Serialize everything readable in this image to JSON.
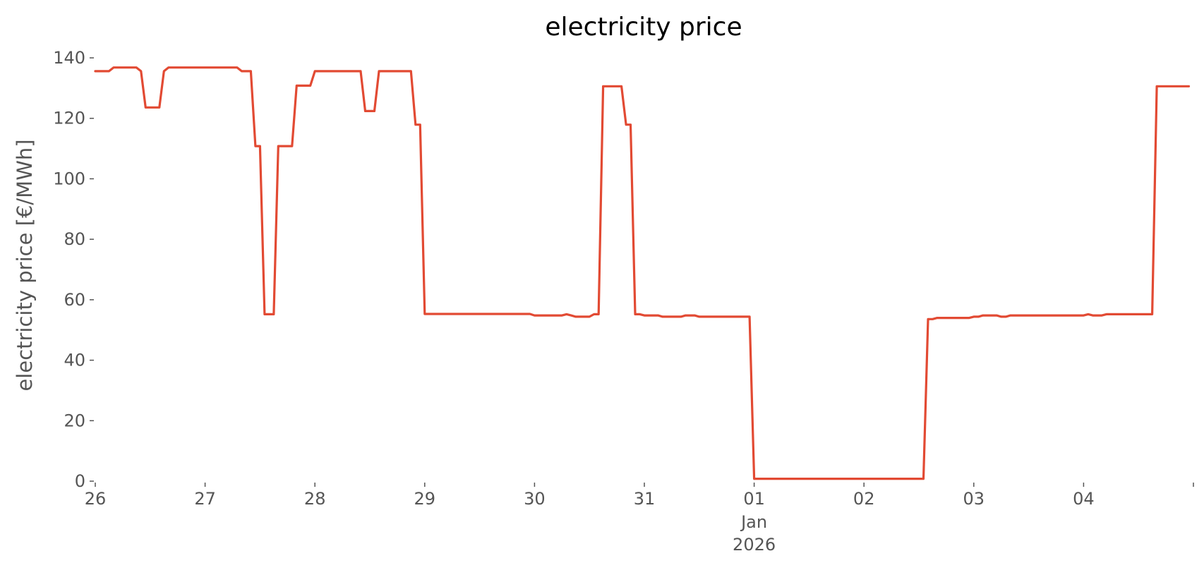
{
  "chart_data": {
    "type": "line",
    "title": "electricity price",
    "xlabel": "",
    "ylabel": "electricity price [€/MWh]",
    "ylim": [
      0,
      145
    ],
    "yticks": [
      0,
      20,
      40,
      60,
      80,
      100,
      120,
      140
    ],
    "xlim": [
      "2025-12-26T00:00",
      "2026-01-04T23:00"
    ],
    "xticks": [
      {
        "x": "2025-12-26",
        "label": "26"
      },
      {
        "x": "2025-12-27",
        "label": "27"
      },
      {
        "x": "2025-12-28",
        "label": "28"
      },
      {
        "x": "2025-12-29",
        "label": "29"
      },
      {
        "x": "2025-12-30",
        "label": "30"
      },
      {
        "x": "2025-12-31",
        "label": "31"
      },
      {
        "x": "2026-01-01",
        "label": "01",
        "sublabels": [
          "Jan",
          "2026"
        ]
      },
      {
        "x": "2026-01-02",
        "label": "02"
      },
      {
        "x": "2026-01-03",
        "label": "03"
      },
      {
        "x": "2026-01-04",
        "label": "04"
      }
    ],
    "grid": false,
    "colors": {
      "series": "#e24a33",
      "text": "#555555"
    },
    "series": [
      {
        "points": [
          [
            "2025-12-26T00:00",
            135.6
          ],
          [
            "2025-12-26T03:00",
            135.6
          ],
          [
            "2025-12-26T04:00",
            136.8
          ],
          [
            "2025-12-26T09:00",
            136.8
          ],
          [
            "2025-12-26T10:00",
            135.6
          ],
          [
            "2025-12-26T11:00",
            123.6
          ],
          [
            "2025-12-26T14:00",
            123.6
          ],
          [
            "2025-12-26T15:00",
            135.6
          ],
          [
            "2025-12-26T16:00",
            136.8
          ],
          [
            "2025-12-27T07:00",
            136.8
          ],
          [
            "2025-12-27T08:00",
            135.6
          ],
          [
            "2025-12-27T10:00",
            135.6
          ],
          [
            "2025-12-27T11:00",
            110.8
          ],
          [
            "2025-12-27T12:00",
            110.8
          ],
          [
            "2025-12-27T13:00",
            55.2
          ],
          [
            "2025-12-27T15:00",
            55.2
          ],
          [
            "2025-12-27T16:00",
            110.8
          ],
          [
            "2025-12-27T19:00",
            110.8
          ],
          [
            "2025-12-27T20:00",
            130.8
          ],
          [
            "2025-12-27T23:00",
            130.8
          ],
          [
            "2025-12-28T00:00",
            135.6
          ],
          [
            "2025-12-28T10:00",
            135.6
          ],
          [
            "2025-12-28T11:00",
            122.4
          ],
          [
            "2025-12-28T13:00",
            122.4
          ],
          [
            "2025-12-28T14:00",
            135.6
          ],
          [
            "2025-12-28T21:00",
            135.6
          ],
          [
            "2025-12-28T22:00",
            117.9
          ],
          [
            "2025-12-28T23:00",
            117.9
          ],
          [
            "2025-12-29T00:00",
            55.3
          ],
          [
            "2025-12-29T23:00",
            55.3
          ],
          [
            "2025-12-30T00:00",
            54.8
          ],
          [
            "2025-12-30T06:00",
            54.8
          ],
          [
            "2025-12-30T07:00",
            55.2
          ],
          [
            "2025-12-30T08:00",
            54.8
          ],
          [
            "2025-12-30T09:00",
            54.4
          ],
          [
            "2025-12-30T12:00",
            54.4
          ],
          [
            "2025-12-30T13:00",
            55.2
          ],
          [
            "2025-12-30T14:00",
            55.2
          ],
          [
            "2025-12-30T15:00",
            130.6
          ],
          [
            "2025-12-30T19:00",
            130.6
          ],
          [
            "2025-12-30T20:00",
            117.9
          ],
          [
            "2025-12-30T21:00",
            117.9
          ],
          [
            "2025-12-30T22:00",
            55.2
          ],
          [
            "2025-12-30T23:00",
            55.2
          ],
          [
            "2025-12-31T00:00",
            54.8
          ],
          [
            "2025-12-31T03:00",
            54.8
          ],
          [
            "2025-12-31T04:00",
            54.4
          ],
          [
            "2025-12-31T08:00",
            54.4
          ],
          [
            "2025-12-31T09:00",
            54.8
          ],
          [
            "2025-12-31T11:00",
            54.8
          ],
          [
            "2025-12-31T12:00",
            54.4
          ],
          [
            "2025-12-31T23:00",
            54.4
          ],
          [
            "2026-01-01T00:00",
            0.8
          ],
          [
            "2026-01-02T13:00",
            0.8
          ],
          [
            "2026-01-02T14:00",
            53.6
          ],
          [
            "2026-01-02T15:00",
            53.6
          ],
          [
            "2026-01-02T16:00",
            54.0
          ],
          [
            "2026-01-02T23:00",
            54.0
          ],
          [
            "2026-01-03T00:00",
            54.4
          ],
          [
            "2026-01-03T01:00",
            54.4
          ],
          [
            "2026-01-03T02:00",
            54.8
          ],
          [
            "2026-01-03T05:00",
            54.8
          ],
          [
            "2026-01-03T06:00",
            54.4
          ],
          [
            "2026-01-03T07:00",
            54.4
          ],
          [
            "2026-01-03T08:00",
            54.8
          ],
          [
            "2026-01-04T00:00",
            54.8
          ],
          [
            "2026-01-04T01:00",
            55.2
          ],
          [
            "2026-01-04T02:00",
            54.8
          ],
          [
            "2026-01-04T04:00",
            54.8
          ],
          [
            "2026-01-04T05:00",
            55.2
          ],
          [
            "2026-01-04T15:00",
            55.2
          ],
          [
            "2026-01-04T16:00",
            130.6
          ],
          [
            "2026-01-04T23:00",
            130.6
          ]
        ]
      }
    ]
  }
}
